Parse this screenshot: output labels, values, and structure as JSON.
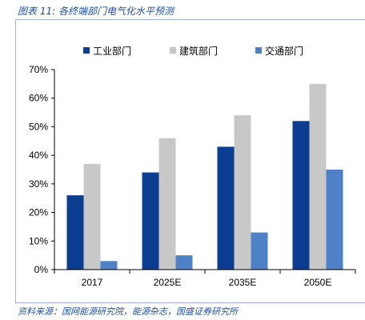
{
  "figure": {
    "title": "图表 11:  各终端部门电气化水平预测",
    "source": "资料来源：国网能源研究院，能源杂志，国盛证券研究所"
  },
  "chart_data": {
    "type": "bar",
    "categories": [
      "2017",
      "2025E",
      "2035E",
      "2050E"
    ],
    "series": [
      {
        "name": "工业部门",
        "color": "#0b3d91",
        "values": [
          26,
          34,
          43,
          52
        ]
      },
      {
        "name": "建筑部门",
        "color": "#c8c8c8",
        "values": [
          37,
          46,
          54,
          65
        ]
      },
      {
        "name": "交通部门",
        "color": "#4f81c7",
        "values": [
          3,
          5,
          13,
          35
        ]
      }
    ],
    "y_ticks": [
      "0%",
      "10%",
      "20%",
      "30%",
      "40%",
      "50%",
      "60%",
      "70%"
    ],
    "ylim": [
      0,
      70
    ],
    "legend_position": "top",
    "grid": false
  }
}
